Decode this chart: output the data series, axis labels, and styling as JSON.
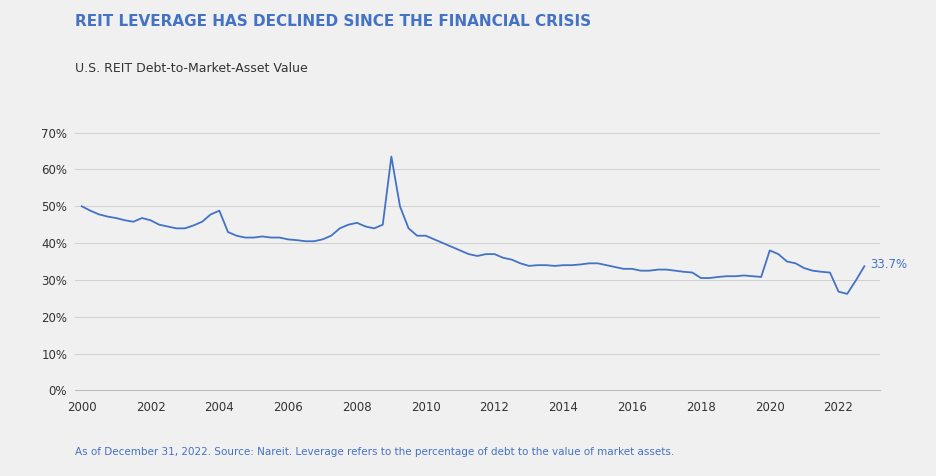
{
  "title": "REIT LEVERAGE HAS DECLINED SINCE THE FINANCIAL CRISIS",
  "subtitle": "U.S. REIT Debt-to-Market-Asset Value",
  "footnote": "As of December 31, 2022. Source: Nareit. Leverage refers to the percentage of debt to the value of market assets.",
  "title_color": "#4472C4",
  "subtitle_color": "#333333",
  "footnote_color": "#4472C4",
  "line_color": "#4472C4",
  "background_color": "#F0F0F0",
  "annotation_text": "33.7%",
  "annotation_color": "#4472C4",
  "xlim": [
    1999.8,
    2023.2
  ],
  "ylim": [
    0,
    0.75
  ],
  "yticks": [
    0,
    0.1,
    0.2,
    0.3,
    0.4,
    0.5,
    0.6,
    0.7
  ],
  "xticks": [
    2000,
    2002,
    2004,
    2006,
    2008,
    2010,
    2012,
    2014,
    2016,
    2018,
    2020,
    2022
  ],
  "x": [
    2000.0,
    2000.25,
    2000.5,
    2000.75,
    2001.0,
    2001.25,
    2001.5,
    2001.75,
    2002.0,
    2002.25,
    2002.5,
    2002.75,
    2003.0,
    2003.25,
    2003.5,
    2003.75,
    2004.0,
    2004.25,
    2004.5,
    2004.75,
    2005.0,
    2005.25,
    2005.5,
    2005.75,
    2006.0,
    2006.25,
    2006.5,
    2006.75,
    2007.0,
    2007.25,
    2007.5,
    2007.75,
    2008.0,
    2008.25,
    2008.5,
    2008.75,
    2009.0,
    2009.25,
    2009.5,
    2009.75,
    2010.0,
    2010.25,
    2010.5,
    2010.75,
    2011.0,
    2011.25,
    2011.5,
    2011.75,
    2012.0,
    2012.25,
    2012.5,
    2012.75,
    2013.0,
    2013.25,
    2013.5,
    2013.75,
    2014.0,
    2014.25,
    2014.5,
    2014.75,
    2015.0,
    2015.25,
    2015.5,
    2015.75,
    2016.0,
    2016.25,
    2016.5,
    2016.75,
    2017.0,
    2017.25,
    2017.5,
    2017.75,
    2018.0,
    2018.25,
    2018.5,
    2018.75,
    2019.0,
    2019.25,
    2019.5,
    2019.75,
    2020.0,
    2020.25,
    2020.5,
    2020.75,
    2021.0,
    2021.25,
    2021.5,
    2021.75,
    2022.0,
    2022.25,
    2022.5,
    2022.75
  ],
  "y": [
    0.5,
    0.488,
    0.478,
    0.472,
    0.468,
    0.462,
    0.458,
    0.468,
    0.462,
    0.45,
    0.445,
    0.44,
    0.44,
    0.448,
    0.458,
    0.478,
    0.488,
    0.43,
    0.42,
    0.415,
    0.415,
    0.418,
    0.415,
    0.415,
    0.41,
    0.408,
    0.405,
    0.405,
    0.41,
    0.42,
    0.44,
    0.45,
    0.455,
    0.445,
    0.44,
    0.45,
    0.635,
    0.5,
    0.44,
    0.42,
    0.42,
    0.41,
    0.4,
    0.39,
    0.38,
    0.37,
    0.365,
    0.37,
    0.37,
    0.36,
    0.355,
    0.345,
    0.338,
    0.34,
    0.34,
    0.338,
    0.34,
    0.34,
    0.342,
    0.345,
    0.345,
    0.34,
    0.335,
    0.33,
    0.33,
    0.325,
    0.325,
    0.328,
    0.328,
    0.325,
    0.322,
    0.32,
    0.305,
    0.305,
    0.308,
    0.31,
    0.31,
    0.312,
    0.31,
    0.308,
    0.38,
    0.37,
    0.35,
    0.345,
    0.332,
    0.325,
    0.322,
    0.32,
    0.268,
    0.262,
    0.298,
    0.337
  ]
}
